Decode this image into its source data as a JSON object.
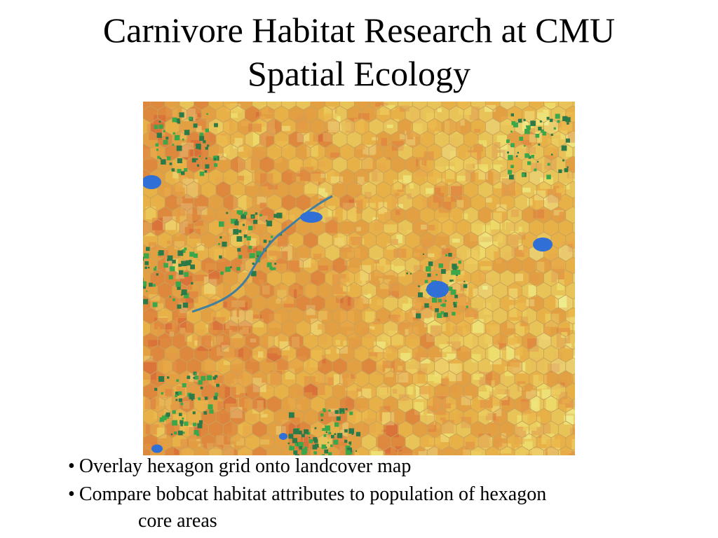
{
  "slide": {
    "title_line1": "Carnivore Habitat Research at CMU",
    "title_line2": "Spatial Ecology"
  },
  "map": {
    "image_description_name": "landcover-hexagon-map",
    "colors": {
      "high": "#d9703a",
      "mid_high": "#e39a45",
      "mid": "#ebb94e",
      "low": "#ecdd6c",
      "very_low": "#f0ee92",
      "forest": "#3aa84a",
      "forest_dark": "#2c7a48",
      "water": "#2f6fd6",
      "grid_line": "#c9a25a"
    }
  },
  "bullets": [
    {
      "symbol": "•",
      "text": "Overlay hexagon grid onto landcover map"
    },
    {
      "symbol": "•",
      "text": "Compare bobcat habitat attributes to population of hexagon",
      "continuation": "core areas"
    }
  ]
}
